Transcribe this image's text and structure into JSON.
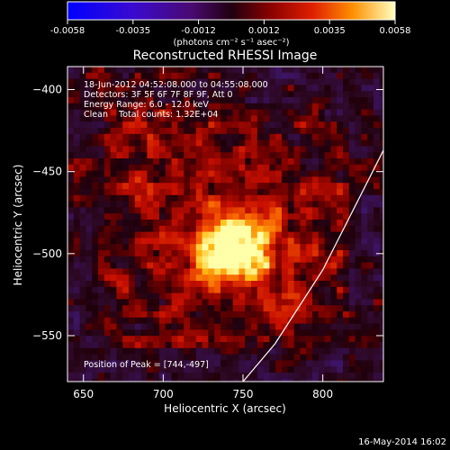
{
  "colorbar": {
    "ticks": [
      "-0.0058",
      "-0.0035",
      "-0.0012",
      "0.0012",
      "0.0035",
      "0.0058"
    ],
    "unit_label": "(photons cm⁻² s⁻¹ asec⁻²)",
    "range": [
      -0.0058,
      0.0058
    ],
    "colormap": "rhessi-purple-red-yellow"
  },
  "chart_data": {
    "type": "heatmap",
    "title": "Reconstructed RHESSI Image",
    "xlabel": "Heliocentric X (arcsec)",
    "ylabel": "Heliocentric Y (arcsec)",
    "xlim": [
      640,
      838
    ],
    "ylim": [
      -578,
      -386
    ],
    "x_ticks": [
      650,
      700,
      750,
      800
    ],
    "y_ticks": [
      -400,
      -450,
      -500,
      -550
    ],
    "peak": {
      "x": 744,
      "y": -497,
      "value": 0.0058
    },
    "limb": [
      [
        838,
        -437
      ],
      [
        800,
        -510
      ],
      [
        770,
        -555
      ],
      [
        750,
        -578
      ]
    ],
    "info_lines": [
      "18-Jun-2012 04:52:08.000 to 04:55:08.000",
      "Detectors: 3F 5F 6F 7F 8F 9F, Att 0",
      "Energy Range: 6.0 - 12.0 keV",
      "Clean    Total counts: 1.32E+04"
    ],
    "peak_label": "Position of Peak = [744,-497]"
  },
  "footer": {
    "timestamp": "16-May-2014 16:02"
  }
}
